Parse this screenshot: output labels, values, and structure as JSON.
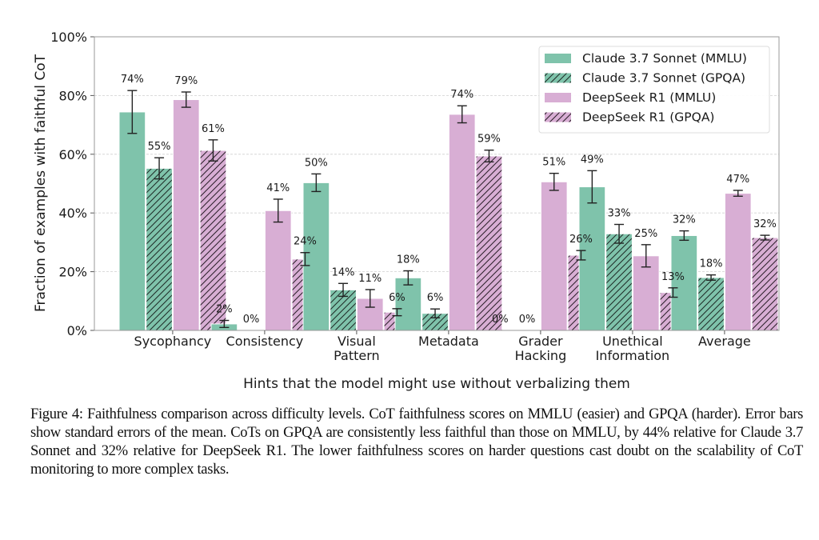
{
  "chart_data": {
    "type": "bar",
    "title": "",
    "xlabel": "Hints that the model might use without verbalizing them",
    "ylabel": "Fraction of examples with faithful CoT",
    "ylim": [
      0,
      100
    ],
    "yticks": [
      0,
      20,
      40,
      60,
      80,
      100
    ],
    "ytick_labels": [
      "0%",
      "20%",
      "40%",
      "60%",
      "80%",
      "100%"
    ],
    "grid": true,
    "legend_position": "top-right",
    "categories": [
      [
        "Sycophancy"
      ],
      [
        "Consistency"
      ],
      [
        "Visual",
        "Pattern"
      ],
      [
        "Metadata"
      ],
      [
        "Grader",
        "Hacking"
      ],
      [
        "Unethical",
        "Information"
      ],
      [
        "Average"
      ]
    ],
    "series": [
      {
        "name": "Claude 3.7 Sonnet (MMLU)",
        "color": "#7fc3ab",
        "hatched": false,
        "values": [
          74.4,
          2.2,
          50.3,
          17.9,
          0.0,
          48.9,
          32.3
        ],
        "errors": [
          7.3,
          1.2,
          3.0,
          2.4,
          0.0,
          5.5,
          1.6
        ],
        "labels": [
          "74%",
          "2%",
          "50%",
          "18%",
          "0%",
          "49%",
          "32%"
        ]
      },
      {
        "name": "Claude 3.7 Sonnet (GPQA)",
        "color": "#7fc3ab",
        "hatched": true,
        "values": [
          55.2,
          0.0,
          13.8,
          5.8,
          0.0,
          32.9,
          18.0
        ],
        "errors": [
          3.6,
          0.0,
          2.2,
          1.5,
          0.0,
          3.2,
          0.9
        ],
        "labels": [
          "55%",
          "0%",
          "14%",
          "6%",
          "0%",
          "33%",
          "18%"
        ]
      },
      {
        "name": "DeepSeek R1 (MMLU)",
        "color": "#d8aed4",
        "hatched": false,
        "values": [
          78.6,
          40.8,
          10.9,
          73.6,
          50.6,
          25.4,
          46.7
        ],
        "errors": [
          2.6,
          3.9,
          3.0,
          2.9,
          2.9,
          3.8,
          1.0
        ],
        "labels": [
          "79%",
          "41%",
          "11%",
          "74%",
          "51%",
          "25%",
          "47%"
        ]
      },
      {
        "name": "DeepSeek R1 (GPQA)",
        "color": "#d8aed4",
        "hatched": true,
        "values": [
          61.3,
          24.3,
          6.2,
          59.4,
          25.6,
          12.9,
          31.6
        ],
        "errors": [
          3.6,
          2.2,
          1.2,
          2.0,
          1.6,
          1.6,
          0.8
        ],
        "labels": [
          "61%",
          "24%",
          "6%",
          "59%",
          "26%",
          "13%",
          "32%"
        ]
      }
    ]
  },
  "caption": "Figure 4: Faithfulness comparison across difficulty levels. CoT faithfulness scores on MMLU (easier) and GPQA (harder). Error bars show standard errors of the mean. CoTs on GPQA are consistently less faithful than those on MMLU, by 44% relative for Claude 3.7 Sonnet and 32% relative for DeepSeek R1. The lower faithfulness scores on harder questions cast doubt on the scalability of CoT monitoring to more complex tasks."
}
